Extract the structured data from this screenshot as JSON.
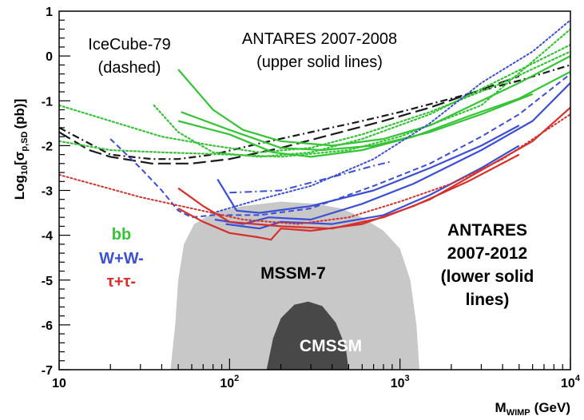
{
  "chart_data": {
    "type": "line",
    "xlabel": "M",
    "xlabel_sub": "WIMP",
    "xlabel_unit": "(GeV)",
    "ylabel_pre": "Log",
    "ylabel_sub1": "10",
    "ylabel_mid": "[σ",
    "ylabel_sub2": "p,SD",
    "ylabel_post": "(pb)]",
    "xscale": "log",
    "xlim": [
      10,
      10000
    ],
    "ylim": [
      -7,
      1
    ],
    "x_tick_labels": [
      {
        "x": 10,
        "base": "10",
        "exp": ""
      },
      {
        "x": 100,
        "base": "10",
        "exp": "2"
      },
      {
        "x": 1000,
        "base": "10",
        "exp": "3"
      },
      {
        "x": 10000,
        "base": "10",
        "exp": "4"
      }
    ],
    "y_tick_labels": [
      "1",
      "0",
      "-1",
      "-2",
      "-3",
      "-4",
      "-5",
      "-6",
      "-7"
    ],
    "colors": {
      "bb": "#35c435",
      "ww": "#3b4fd6",
      "tt": "#d6302a",
      "icecube": "#1a1a1a",
      "mssm7": "#c8c8c8",
      "cmssm": "#484848"
    },
    "annotations": {
      "icecube_line1": "IceCube-79",
      "icecube_line2": "(dashed)",
      "antares08_line1": "ANTARES 2007-2008",
      "antares08_line2": "(upper solid lines)",
      "antares12_line1": "ANTARES",
      "antares12_line2": "2007-2012",
      "antares12_line3": "(lower solid",
      "antares12_line4": "lines)",
      "mssm7": "MSSM-7",
      "cmssm": "CMSSM"
    },
    "legend": [
      {
        "label": "bb",
        "color": "#35c435"
      },
      {
        "label": "W+W-",
        "color": "#3b4fd6"
      },
      {
        "label": "τ+τ-",
        "color": "#d6302a"
      }
    ],
    "regions": [
      {
        "name": "MSSM-7",
        "color": "#c8c8c8",
        "points": [
          [
            45,
            -7
          ],
          [
            48,
            -6
          ],
          [
            50,
            -5
          ],
          [
            54,
            -4.2
          ],
          [
            62,
            -3.75
          ],
          [
            80,
            -3.5
          ],
          [
            120,
            -3.35
          ],
          [
            200,
            -3.25
          ],
          [
            320,
            -3.3
          ],
          [
            450,
            -3.4
          ],
          [
            600,
            -3.6
          ],
          [
            800,
            -3.9
          ],
          [
            1000,
            -4.3
          ],
          [
            1150,
            -5
          ],
          [
            1250,
            -6
          ],
          [
            1300,
            -7
          ]
        ]
      },
      {
        "name": "CMSSM",
        "color": "#484848",
        "points": [
          [
            165,
            -7
          ],
          [
            180,
            -6.3
          ],
          [
            200,
            -5.85
          ],
          [
            240,
            -5.55
          ],
          [
            290,
            -5.48
          ],
          [
            350,
            -5.58
          ],
          [
            420,
            -5.95
          ],
          [
            480,
            -6.5
          ],
          [
            500,
            -7
          ]
        ]
      }
    ],
    "series": [
      {
        "group": "icecube",
        "style": "dashdot",
        "color": "#1a1a1a",
        "width": 2.2,
        "points": [
          [
            10,
            -1.6
          ],
          [
            15,
            -1.95
          ],
          [
            20,
            -2.2
          ],
          [
            35,
            -2.3
          ],
          [
            50,
            -2.3
          ],
          [
            80,
            -2.2
          ],
          [
            150,
            -1.95
          ],
          [
            300,
            -1.7
          ],
          [
            600,
            -1.45
          ],
          [
            1000,
            -1.25
          ],
          [
            2000,
            -0.95
          ],
          [
            5000,
            -0.55
          ],
          [
            10000,
            -0.2
          ]
        ]
      },
      {
        "group": "icecube",
        "style": "longdash",
        "color": "#1a1a1a",
        "width": 2.2,
        "points": [
          [
            10,
            -1.7
          ],
          [
            15,
            -2.1
          ],
          [
            20,
            -2.25
          ],
          [
            35,
            -2.4
          ],
          [
            60,
            -2.4
          ],
          [
            100,
            -2.3
          ],
          [
            200,
            -2.05
          ],
          [
            400,
            -1.75
          ],
          [
            800,
            -1.45
          ],
          [
            1500,
            -1.15
          ],
          [
            3000,
            -0.75
          ],
          [
            5000,
            -0.45
          ]
        ]
      },
      {
        "group": "bb",
        "style": "dotted",
        "color": "#35c435",
        "width": 2.2,
        "points": [
          [
            10,
            -1.1
          ],
          [
            20,
            -1.45
          ],
          [
            40,
            -1.8
          ],
          [
            80,
            -2.0
          ],
          [
            150,
            -2.15
          ],
          [
            300,
            -2.05
          ],
          [
            600,
            -1.75
          ],
          [
            1500,
            -1.25
          ],
          [
            4000,
            -0.6
          ],
          [
            10000,
            0.1
          ]
        ]
      },
      {
        "group": "bb",
        "style": "dotted",
        "color": "#35c435",
        "width": 2.2,
        "points": [
          [
            10,
            -1.9
          ],
          [
            20,
            -2.1
          ],
          [
            40,
            -2.15
          ],
          [
            100,
            -2.2
          ],
          [
            200,
            -2.25
          ],
          [
            500,
            -2.1
          ],
          [
            1000,
            -1.8
          ],
          [
            3000,
            -1.1
          ],
          [
            10000,
            0.6
          ]
        ]
      },
      {
        "group": "bb",
        "style": "dotted",
        "color": "#35c435",
        "width": 2.2,
        "points": [
          [
            36,
            -1.1
          ],
          [
            50,
            -1.7
          ],
          [
            80,
            -2.15
          ],
          [
            150,
            -2.25
          ],
          [
            300,
            -2.15
          ],
          [
            600,
            -1.85
          ],
          [
            1500,
            -1.3
          ],
          [
            4000,
            -0.5
          ],
          [
            10000,
            0.25
          ]
        ]
      },
      {
        "group": "bb",
        "style": "solid",
        "color": "#35c435",
        "width": 2.2,
        "points": [
          [
            50,
            -0.3
          ],
          [
            80,
            -1.2
          ],
          [
            120,
            -1.65
          ],
          [
            200,
            -1.9
          ],
          [
            400,
            -2.0
          ],
          [
            800,
            -1.85
          ],
          [
            1500,
            -1.55
          ],
          [
            3000,
            -1.0
          ],
          [
            5000,
            -0.6
          ],
          [
            10000,
            0.0
          ]
        ]
      },
      {
        "group": "bb",
        "style": "solid",
        "color": "#35c435",
        "width": 2.2,
        "points": [
          [
            50,
            -1.45
          ],
          [
            100,
            -1.75
          ],
          [
            180,
            -2.15
          ],
          [
            300,
            -2.25
          ],
          [
            600,
            -2.1
          ],
          [
            1200,
            -1.8
          ],
          [
            2500,
            -1.35
          ],
          [
            5000,
            -0.95
          ],
          [
            10000,
            -0.35
          ]
        ]
      },
      {
        "group": "bb",
        "style": "solid",
        "color": "#35c435",
        "width": 2.2,
        "points": [
          [
            52,
            -1.25
          ],
          [
            100,
            -1.65
          ],
          [
            200,
            -2.05
          ],
          [
            350,
            -2.1
          ],
          [
            700,
            -2.0
          ],
          [
            1500,
            -1.7
          ],
          [
            3000,
            -1.3
          ],
          [
            6000,
            -0.85
          ]
        ]
      },
      {
        "group": "ww",
        "style": "dotted",
        "color": "#3b4fd6",
        "width": 2.0,
        "points": [
          [
            80,
            -3.5
          ],
          [
            150,
            -3.2
          ],
          [
            300,
            -2.9
          ],
          [
            700,
            -2.3
          ],
          [
            1500,
            -1.5
          ],
          [
            3000,
            -0.6
          ],
          [
            6000,
            0.1
          ],
          [
            10000,
            0.8
          ]
        ]
      },
      {
        "group": "ww",
        "style": "dashdot",
        "color": "#3b4fd6",
        "width": 2.0,
        "points": [
          [
            100,
            -3.05
          ],
          [
            200,
            -3.0
          ],
          [
            400,
            -2.7
          ],
          [
            700,
            -2.45
          ],
          [
            900,
            -2.35
          ]
        ]
      },
      {
        "group": "ww",
        "style": "dashed",
        "color": "#3b4fd6",
        "width": 2.0,
        "points": [
          [
            20,
            -1.85
          ],
          [
            30,
            -2.5
          ],
          [
            40,
            -3.0
          ],
          [
            50,
            -3.45
          ],
          [
            60,
            -3.6
          ],
          [
            80,
            -3.55
          ],
          [
            150,
            -3.55
          ],
          [
            300,
            -3.4
          ],
          [
            700,
            -2.9
          ],
          [
            1500,
            -2.4
          ],
          [
            3000,
            -1.8
          ],
          [
            5000,
            -1.3
          ],
          [
            10000,
            -0.4
          ]
        ]
      },
      {
        "group": "ww",
        "style": "solid",
        "color": "#3b4fd6",
        "width": 2.2,
        "points": [
          [
            85,
            -2.75
          ],
          [
            110,
            -3.45
          ],
          [
            150,
            -3.5
          ],
          [
            300,
            -3.35
          ],
          [
            700,
            -3.0
          ],
          [
            1500,
            -2.5
          ],
          [
            3000,
            -2.0
          ],
          [
            5000,
            -1.55
          ]
        ]
      },
      {
        "group": "ww",
        "style": "solid",
        "color": "#3b4fd6",
        "width": 2.2,
        "points": [
          [
            82,
            -3.65
          ],
          [
            120,
            -3.75
          ],
          [
            170,
            -3.6
          ],
          [
            300,
            -3.65
          ],
          [
            600,
            -3.3
          ],
          [
            1200,
            -2.85
          ],
          [
            3000,
            -2.1
          ],
          [
            6000,
            -1.45
          ],
          [
            10000,
            -0.6
          ]
        ]
      },
      {
        "group": "ww",
        "style": "solid",
        "color": "#3b4fd6",
        "width": 2.2,
        "points": [
          [
            95,
            -3.75
          ],
          [
            150,
            -3.85
          ],
          [
            200,
            -3.7
          ],
          [
            400,
            -3.75
          ],
          [
            800,
            -3.55
          ],
          [
            1500,
            -3.1
          ],
          [
            3000,
            -2.5
          ],
          [
            5000,
            -2.0
          ]
        ]
      },
      {
        "group": "tt",
        "style": "dotted",
        "color": "#d6302a",
        "width": 2.0,
        "points": [
          [
            10,
            -2.65
          ],
          [
            30,
            -3.15
          ],
          [
            60,
            -3.4
          ],
          [
            120,
            -3.65
          ],
          [
            250,
            -3.75
          ],
          [
            500,
            -3.6
          ],
          [
            1000,
            -3.25
          ],
          [
            2000,
            -2.85
          ],
          [
            4000,
            -2.3
          ],
          [
            10000,
            -1.3
          ]
        ]
      },
      {
        "group": "tt",
        "style": "solid",
        "color": "#d6302a",
        "width": 2.2,
        "points": [
          [
            50,
            -3.4
          ],
          [
            70,
            -3.7
          ],
          [
            100,
            -3.95
          ],
          [
            150,
            -4.05
          ],
          [
            175,
            -4.1
          ],
          [
            200,
            -3.85
          ],
          [
            300,
            -3.9
          ],
          [
            600,
            -3.75
          ],
          [
            1200,
            -3.35
          ],
          [
            2500,
            -2.8
          ],
          [
            5000,
            -2.2
          ]
        ]
      },
      {
        "group": "tt",
        "style": "solid",
        "color": "#d6302a",
        "width": 2.2,
        "points": [
          [
            50,
            -2.95
          ],
          [
            70,
            -3.35
          ],
          [
            100,
            -3.7
          ],
          [
            200,
            -3.8
          ],
          [
            400,
            -3.85
          ],
          [
            800,
            -3.6
          ],
          [
            1500,
            -3.2
          ],
          [
            3000,
            -2.55
          ],
          [
            6000,
            -1.9
          ],
          [
            10000,
            -1.15
          ]
        ]
      }
    ]
  }
}
